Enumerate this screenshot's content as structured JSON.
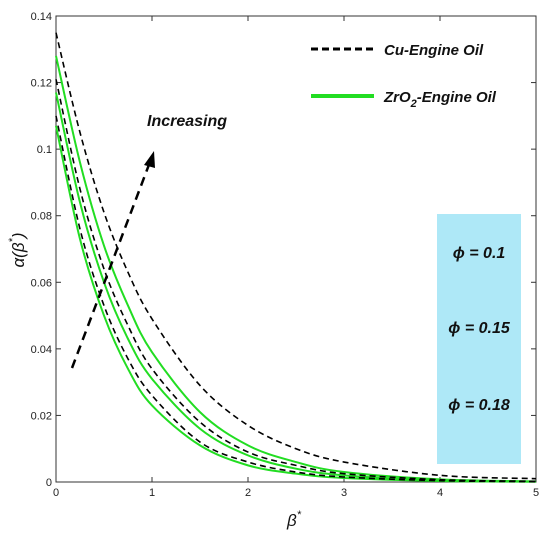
{
  "chart_data": {
    "type": "line",
    "title": "",
    "xlabel": "β*",
    "ylabel": "α(β*)",
    "xlim": [
      0,
      5
    ],
    "ylim": [
      0,
      0.14
    ],
    "xticks": [
      "0",
      "1",
      "2",
      "3",
      "4",
      "5"
    ],
    "yticks": [
      "0",
      "0.02",
      "0.04",
      "0.06",
      "0.08",
      "0.1",
      "0.12",
      "0.14"
    ],
    "grid": false,
    "legend": {
      "placement": "top-right",
      "entries": [
        {
          "label": "Cu-Engine Oil",
          "style": "dashed",
          "color": "#000000"
        },
        {
          "label_main": "ZrO",
          "label_sub": "2",
          "label_rest": "-Engine Oil",
          "style": "solid",
          "color": "#22dd22"
        }
      ]
    },
    "series": [
      {
        "group": "Cu-Engine Oil",
        "phi": "0.1",
        "style": "dashed",
        "color": "#000000",
        "x": [
          0,
          0.25,
          0.5,
          0.75,
          1,
          1.5,
          2,
          2.5,
          3,
          4,
          5
        ],
        "y": [
          0.11,
          0.076,
          0.053,
          0.037,
          0.026,
          0.012,
          0.006,
          0.003,
          0.0015,
          0.0004,
          0.0001
        ]
      },
      {
        "group": "Cu-Engine Oil",
        "phi": "0.15",
        "style": "dashed",
        "color": "#000000",
        "x": [
          0,
          0.25,
          0.5,
          0.75,
          1,
          1.5,
          2,
          2.5,
          3,
          4,
          5
        ],
        "y": [
          0.121,
          0.088,
          0.064,
          0.047,
          0.034,
          0.018,
          0.009,
          0.005,
          0.0025,
          0.0007,
          0.0002
        ]
      },
      {
        "group": "Cu-Engine Oil",
        "phi": "0.18",
        "style": "dashed",
        "color": "#000000",
        "x": [
          0,
          0.25,
          0.5,
          0.75,
          1,
          1.5,
          2,
          2.5,
          3,
          4,
          5
        ],
        "y": [
          0.135,
          0.105,
          0.081,
          0.063,
          0.049,
          0.029,
          0.017,
          0.01,
          0.006,
          0.002,
          0.001
        ]
      },
      {
        "group": "ZrO2-Engine Oil",
        "phi": "0.1",
        "style": "solid",
        "color": "#22dd22",
        "x": [
          0,
          0.25,
          0.5,
          0.75,
          1,
          1.5,
          2,
          2.5,
          3,
          4,
          5
        ],
        "y": [
          0.107,
          0.073,
          0.05,
          0.034,
          0.023,
          0.011,
          0.005,
          0.0025,
          0.0012,
          0.0003,
          0.0001
        ]
      },
      {
        "group": "ZrO2-Engine Oil",
        "phi": "0.15",
        "style": "solid",
        "color": "#22dd22",
        "x": [
          0,
          0.25,
          0.5,
          0.75,
          1,
          1.5,
          2,
          2.5,
          3,
          4,
          5
        ],
        "y": [
          0.117,
          0.084,
          0.06,
          0.043,
          0.031,
          0.016,
          0.008,
          0.004,
          0.002,
          0.0005,
          0.0001
        ]
      },
      {
        "group": "ZrO2-Engine Oil",
        "phi": "0.18",
        "style": "solid",
        "color": "#22dd22",
        "x": [
          0,
          0.25,
          0.5,
          0.75,
          1,
          1.5,
          2,
          2.5,
          3,
          4,
          5
        ],
        "y": [
          0.128,
          0.096,
          0.071,
          0.053,
          0.039,
          0.021,
          0.011,
          0.006,
          0.003,
          0.0008,
          0.0002
        ]
      }
    ],
    "annotation": {
      "text": "Increasing"
    },
    "parameter_box": {
      "color": "#aee8f7",
      "symbol": "ϕ",
      "labels": [
        "ϕ = 0.1",
        "ϕ = 0.15",
        "ϕ = 0.18"
      ]
    }
  }
}
